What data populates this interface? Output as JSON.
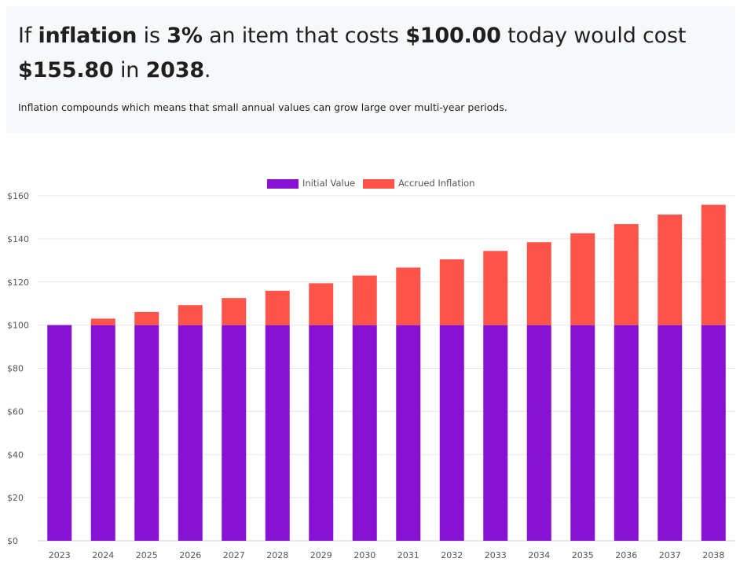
{
  "headline": {
    "part1": "If ",
    "bold1": "inflation",
    "part2": " is ",
    "rate": "3%",
    "part3": " an item that costs ",
    "start_amount": "$100.00",
    "part4": " today would cost ",
    "end_amount": "$155.80",
    "part5": " in ",
    "end_year": "2038",
    "part6": "."
  },
  "subtext": "Inflation compounds which means that small annual values can grow large over multi-year periods.",
  "colors": {
    "initial": "#8811d4",
    "accrued": "#ff544a",
    "grid": "#e6e6e6"
  },
  "chart_data": {
    "type": "bar",
    "stacked": true,
    "categories": [
      "2023",
      "2024",
      "2025",
      "2026",
      "2027",
      "2028",
      "2029",
      "2030",
      "2031",
      "2032",
      "2033",
      "2034",
      "2035",
      "2036",
      "2037",
      "2038"
    ],
    "series": [
      {
        "name": "Initial Value",
        "values": [
          100,
          100,
          100,
          100,
          100,
          100,
          100,
          100,
          100,
          100,
          100,
          100,
          100,
          100,
          100,
          100
        ]
      },
      {
        "name": "Accrued Inflation",
        "values": [
          0,
          3,
          6.09,
          9.27,
          12.55,
          15.93,
          19.41,
          22.99,
          26.68,
          30.48,
          34.39,
          38.42,
          42.58,
          46.85,
          51.26,
          55.8
        ]
      }
    ],
    "ylim": [
      0,
      160
    ],
    "yticks": [
      0,
      20,
      40,
      60,
      80,
      100,
      120,
      140,
      160
    ],
    "ytick_prefix": "$",
    "legend_position": "top-center",
    "grid": true
  }
}
